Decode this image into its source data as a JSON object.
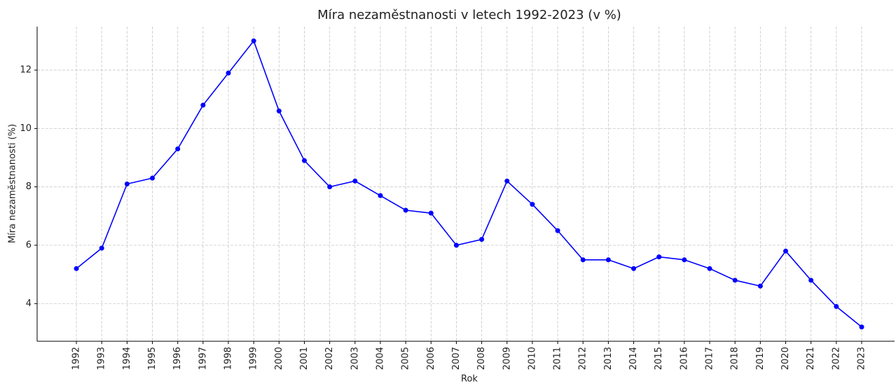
{
  "chart_data": {
    "type": "line",
    "title": "Míra nezaměstnanosti v letech 1992-2023 (v %)",
    "xlabel": "Rok",
    "ylabel": "Míra nezaměstnanosti (%)",
    "x": [
      1992,
      1993,
      1994,
      1995,
      1996,
      1997,
      1998,
      1999,
      2000,
      2001,
      2002,
      2003,
      2004,
      2005,
      2006,
      2007,
      2008,
      2009,
      2010,
      2011,
      2012,
      2013,
      2014,
      2015,
      2016,
      2017,
      2018,
      2019,
      2020,
      2021,
      2022,
      2023
    ],
    "values": [
      5.2,
      5.9,
      8.1,
      8.3,
      9.3,
      10.8,
      11.9,
      13.0,
      10.6,
      8.9,
      8.0,
      8.2,
      7.7,
      7.2,
      7.1,
      6.0,
      6.2,
      8.2,
      7.4,
      6.5,
      5.5,
      5.5,
      5.2,
      5.6,
      5.5,
      5.2,
      4.8,
      4.6,
      5.8,
      4.8,
      3.9,
      3.2
    ],
    "color": "#0000ff",
    "xlim": [
      1990.45,
      2024.3
    ],
    "xticks": [
      1992,
      1993,
      1994,
      1995,
      1996,
      1997,
      1998,
      1999,
      2000,
      2001,
      2002,
      2003,
      2004,
      2005,
      2006,
      2007,
      2008,
      2009,
      2010,
      2011,
      2012,
      2013,
      2014,
      2015,
      2016,
      2017,
      2018,
      2019,
      2020,
      2021,
      2022,
      2023
    ],
    "ylim": [
      2.71,
      13.49
    ],
    "yticks": [
      4,
      6,
      8,
      10,
      12
    ],
    "grid": true
  }
}
